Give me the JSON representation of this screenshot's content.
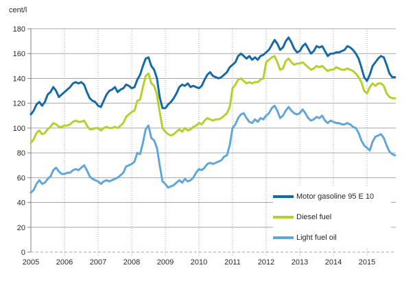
{
  "title": {
    "unit_label": "cent/l"
  },
  "axes": {
    "y": {
      "min": 0,
      "max": 180,
      "step": 20,
      "tick_labels": [
        "0",
        "20",
        "40",
        "60",
        "80",
        "100",
        "120",
        "140",
        "160",
        "180"
      ]
    },
    "x": {
      "tick_labels": [
        "2005",
        "2006",
        "2007",
        "2008",
        "2009",
        "2010",
        "2011",
        "2012",
        "2013",
        "2014",
        "2015"
      ]
    }
  },
  "legend": [
    {
      "label": "Motor gasoline 95 E 10",
      "color": "#1669a8"
    },
    {
      "label": "Diesel fuel",
      "color": "#b6d02b"
    },
    {
      "label": "Light fuel oil",
      "color": "#60a6db"
    }
  ],
  "colors": {
    "background": "#ffffff",
    "gridline": "#a6a6a6",
    "axis": "#7f7f7f",
    "text": "#262626"
  },
  "chart_data": {
    "type": "line",
    "title": "",
    "xlabel": "",
    "ylabel": "cent/l",
    "x_start": "2005-01",
    "x_interval": "monthly",
    "x_tick_labels": [
      "2005",
      "2006",
      "2007",
      "2008",
      "2009",
      "2010",
      "2011",
      "2012",
      "2013",
      "2014",
      "2015"
    ],
    "ylim": [
      0,
      180
    ],
    "y_step": 20,
    "grid": "horizontal-solid, vertical-dotted-at-year-boundaries, zero-line-dashed",
    "legend_position": "inside-lower-right",
    "series": [
      {
        "name": "Motor gasoline 95 E 10",
        "color": "#1669a8",
        "values": [
          111,
          114,
          119,
          121,
          118,
          121,
          127,
          129,
          133,
          130,
          125,
          127,
          129,
          131,
          133,
          136,
          137,
          136,
          137,
          135,
          129,
          124,
          122,
          121,
          118,
          117,
          122,
          127,
          130,
          131,
          133,
          129,
          131,
          132,
          135,
          134,
          132,
          133,
          139,
          143,
          150,
          156,
          157,
          150,
          147,
          140,
          125,
          116,
          116,
          119,
          121,
          124,
          128,
          133,
          135,
          134,
          136,
          133,
          134,
          133,
          132,
          134,
          139,
          143,
          145,
          142,
          141,
          140,
          141,
          143,
          145,
          149,
          151,
          153,
          158,
          160,
          158,
          156,
          158,
          155,
          157,
          155,
          158,
          159,
          161,
          163,
          167,
          171,
          168,
          163,
          165,
          170,
          173,
          169,
          164,
          161,
          162,
          166,
          168,
          164,
          160,
          162,
          166,
          165,
          166,
          162,
          158,
          160,
          160,
          161,
          161,
          162,
          163,
          166,
          165,
          163,
          160,
          156,
          149,
          141,
          138,
          143,
          150,
          153,
          156,
          158,
          157,
          151,
          144,
          141,
          141
        ]
      },
      {
        "name": "Diesel fuel",
        "color": "#b6d02b",
        "values": [
          88,
          91,
          96,
          98,
          95,
          96,
          99,
          101,
          104,
          103,
          101,
          101,
          102,
          102,
          103,
          105,
          106,
          105,
          105,
          106,
          102,
          99,
          99,
          100,
          100,
          98,
          100,
          101,
          100,
          100,
          101,
          100,
          102,
          104,
          109,
          111,
          113,
          114,
          122,
          123,
          133,
          142,
          144,
          136,
          134,
          127,
          113,
          100,
          97,
          95,
          94,
          95,
          97,
          99,
          97,
          100,
          98,
          99,
          101,
          102,
          104,
          103,
          106,
          108,
          107,
          106,
          107,
          107,
          108,
          110,
          112,
          117,
          132,
          135,
          139,
          140,
          138,
          136,
          137,
          136,
          137,
          137,
          139,
          140,
          153,
          155,
          157,
          158,
          153,
          147,
          148,
          154,
          156,
          153,
          151,
          152,
          152,
          153,
          151,
          149,
          147,
          148,
          150,
          149,
          150,
          148,
          146,
          147,
          147,
          149,
          148,
          147,
          147,
          148,
          147,
          146,
          144,
          141,
          137,
          130,
          128,
          133,
          136,
          134,
          136,
          136,
          134,
          128,
          125,
          124,
          124
        ]
      },
      {
        "name": "Light fuel oil",
        "color": "#60a6db",
        "values": [
          48,
          50,
          55,
          58,
          55,
          56,
          59,
          61,
          66,
          68,
          65,
          63,
          63,
          64,
          64,
          66,
          67,
          66,
          68,
          70,
          66,
          61,
          59,
          58,
          57,
          55,
          57,
          58,
          57,
          58,
          59,
          60,
          62,
          64,
          69,
          70,
          71,
          73,
          80,
          79,
          88,
          99,
          102,
          92,
          90,
          84,
          70,
          57,
          55,
          52,
          53,
          54,
          56,
          58,
          56,
          59,
          57,
          58,
          60,
          64,
          67,
          66,
          68,
          71,
          72,
          71,
          72,
          73,
          74,
          77,
          78,
          86,
          100,
          103,
          108,
          111,
          112,
          108,
          105,
          104,
          107,
          105,
          108,
          107,
          110,
          112,
          116,
          118,
          114,
          108,
          110,
          114,
          117,
          114,
          112,
          111,
          112,
          115,
          112,
          108,
          106,
          107,
          109,
          108,
          110,
          106,
          104,
          106,
          105,
          104,
          104,
          103,
          103,
          104,
          103,
          101,
          100,
          96,
          90,
          86,
          84,
          82,
          89,
          93,
          94,
          95,
          92,
          86,
          81,
          79,
          78
        ]
      }
    ]
  }
}
